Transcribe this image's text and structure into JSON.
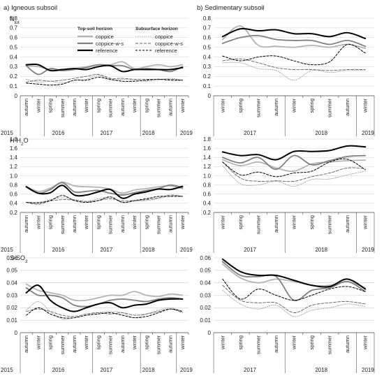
{
  "panels": {
    "igneous_title": "a) Igneous subsoil",
    "sedimentary_title": "b) Sedimentary subsoil"
  },
  "legend": {
    "topsoil_title": "Top-soil horizon",
    "subsurface_title": "Subsurface horizon",
    "entries": [
      "coppice",
      "coppice-w-s",
      "reference"
    ]
  },
  "colors": {
    "coppice": "#b4b4b4",
    "coppice_w_s": "#808080",
    "reference": "#000000",
    "sub_coppice": "#a8a8a8",
    "sub_coppice_w_s": "#606060",
    "sub_reference": "#000000"
  },
  "x_axes": {
    "igneous": {
      "seasons": [
        "autumn",
        "winter",
        "spring",
        "summer",
        "autumn",
        "winter",
        "spring",
        "summer",
        "autumn",
        "winter",
        "spring",
        "summer",
        "autumn",
        "winter"
      ],
      "years": [
        "2015",
        "2016",
        "2017",
        "2018",
        "2019"
      ]
    },
    "sedimentary": {
      "seasons": [
        "winter",
        "spring",
        "summer",
        "autumn",
        "winter",
        "spring",
        "summer",
        "autumn",
        "winter"
      ],
      "years": [
        "2017",
        "2018",
        "2019"
      ]
    }
  },
  "chart_data": [
    {
      "type": "line",
      "panel": "igneous",
      "ylabel": "N_tot",
      "ylim": [
        0,
        0.8
      ],
      "yticks": [
        0,
        0.1,
        0.2,
        0.3,
        0.4,
        0.5,
        0.6,
        0.7,
        0.8
      ],
      "series": [
        {
          "name": "coppice",
          "horizon": "top-soil",
          "values": [
            0.31,
            0.3,
            0.27,
            0.26,
            0.28,
            0.3,
            0.32,
            0.32,
            0.35,
            0.28,
            0.3,
            0.32,
            0.3,
            0.32
          ]
        },
        {
          "name": "coppice-w-s",
          "horizon": "top-soil",
          "values": [
            0.31,
            0.22,
            0.28,
            0.26,
            0.27,
            0.29,
            0.32,
            0.31,
            0.31,
            0.27,
            0.28,
            0.27,
            0.25,
            0.3
          ]
        },
        {
          "name": "reference",
          "horizon": "top-soil",
          "values": [
            0.32,
            0.32,
            0.26,
            0.27,
            0.28,
            0.27,
            0.3,
            0.31,
            0.25,
            0.27,
            0.27,
            0.27,
            0.27,
            0.29
          ]
        },
        {
          "name": "coppice",
          "horizon": "subsurface",
          "values": [
            0.17,
            0.14,
            0.15,
            0.13,
            0.16,
            0.17,
            0.21,
            0.16,
            0.17,
            0.16,
            0.15,
            0.16,
            0.18,
            0.16
          ]
        },
        {
          "name": "coppice-w-s",
          "horizon": "subsurface",
          "values": [
            0.14,
            0.16,
            0.15,
            0.16,
            0.18,
            0.2,
            0.22,
            0.18,
            0.18,
            0.17,
            0.17,
            0.17,
            0.17,
            0.16
          ]
        },
        {
          "name": "reference",
          "horizon": "subsurface",
          "values": [
            0.13,
            0.12,
            0.11,
            0.12,
            0.16,
            0.16,
            0.19,
            0.17,
            0.15,
            0.15,
            0.16,
            0.17,
            0.16,
            0.16
          ]
        }
      ]
    },
    {
      "type": "line",
      "panel": "sedimentary",
      "ylim": [
        0,
        0.8
      ],
      "yticks": [
        0,
        0.1,
        0.2,
        0.3,
        0.4,
        0.5,
        0.6,
        0.7,
        0.8
      ],
      "series": [
        {
          "name": "coppice",
          "horizon": "top-soil",
          "values": [
            0.58,
            0.72,
            0.52,
            0.51,
            0.5,
            0.52,
            0.5,
            0.53,
            0.49
          ]
        },
        {
          "name": "coppice-w-s",
          "horizon": "top-soil",
          "values": [
            0.54,
            0.6,
            0.62,
            0.58,
            0.57,
            0.57,
            0.53,
            0.57,
            0.51
          ]
        },
        {
          "name": "reference",
          "horizon": "top-soil",
          "values": [
            0.61,
            0.69,
            0.67,
            0.68,
            0.64,
            0.64,
            0.61,
            0.65,
            0.59
          ]
        },
        {
          "name": "coppice",
          "horizon": "subsurface",
          "values": [
            0.34,
            0.34,
            0.28,
            0.26,
            0.16,
            0.26,
            0.24,
            0.26,
            0.26
          ]
        },
        {
          "name": "coppice-w-s",
          "horizon": "subsurface",
          "values": [
            0.36,
            0.38,
            0.34,
            0.29,
            0.27,
            0.27,
            0.26,
            0.27,
            0.27
          ]
        },
        {
          "name": "reference",
          "horizon": "subsurface",
          "values": [
            0.41,
            0.36,
            0.4,
            0.41,
            0.36,
            0.32,
            0.35,
            0.53,
            0.44
          ]
        }
      ]
    },
    {
      "type": "line",
      "panel": "igneous",
      "ylabel": "H-H2O",
      "ylim": [
        0.2,
        1.8
      ],
      "yticks": [
        0.2,
        0.4,
        0.6,
        0.8,
        1.0,
        1.2,
        1.4,
        1.6,
        1.8
      ],
      "series": [
        {
          "name": "coppice",
          "horizon": "top-soil",
          "values": [
            0.77,
            0.66,
            0.73,
            0.86,
            0.78,
            0.76,
            0.75,
            0.71,
            0.62,
            0.69,
            0.72,
            0.76,
            0.78,
            0.72
          ]
        },
        {
          "name": "coppice-w-s",
          "horizon": "top-soil",
          "values": [
            0.76,
            0.62,
            0.7,
            0.85,
            0.65,
            0.66,
            0.68,
            0.62,
            0.58,
            0.63,
            0.68,
            0.72,
            0.8,
            0.74
          ]
        },
        {
          "name": "reference",
          "horizon": "top-soil",
          "values": [
            0.76,
            0.62,
            0.63,
            0.79,
            0.58,
            0.58,
            0.65,
            0.7,
            0.51,
            0.6,
            0.65,
            0.71,
            0.7,
            0.77
          ]
        },
        {
          "name": "coppice",
          "horizon": "subsurface",
          "values": [
            0.42,
            0.42,
            0.48,
            0.52,
            0.48,
            0.44,
            0.5,
            0.52,
            0.42,
            0.44,
            0.46,
            0.5,
            0.56,
            0.56
          ]
        },
        {
          "name": "coppice-w-s",
          "horizon": "subsurface",
          "values": [
            0.42,
            0.38,
            0.45,
            0.48,
            0.47,
            0.44,
            0.46,
            0.5,
            0.45,
            0.46,
            0.48,
            0.52,
            0.58,
            0.55
          ]
        },
        {
          "name": "reference",
          "horizon": "subsurface",
          "values": [
            0.42,
            0.41,
            0.46,
            0.57,
            0.46,
            0.42,
            0.46,
            0.54,
            0.42,
            0.46,
            0.5,
            0.55,
            0.55,
            0.55
          ]
        }
      ]
    },
    {
      "type": "line",
      "panel": "sedimentary",
      "ylim": [
        0.2,
        1.8
      ],
      "yticks": [
        0.2,
        0.4,
        0.6,
        0.8,
        1.0,
        1.2,
        1.4,
        1.6,
        1.8
      ],
      "series": [
        {
          "name": "coppice",
          "horizon": "top-soil",
          "values": [
            1.35,
            1.22,
            1.3,
            1.17,
            1.1,
            1.26,
            1.3,
            1.33,
            1.34
          ]
        },
        {
          "name": "coppice-w-s",
          "horizon": "top-soil",
          "values": [
            1.4,
            1.28,
            1.4,
            1.14,
            1.44,
            1.24,
            1.33,
            1.42,
            1.44
          ]
        },
        {
          "name": "reference",
          "horizon": "top-soil",
          "values": [
            1.52,
            1.44,
            1.46,
            1.35,
            1.53,
            1.53,
            1.55,
            1.65,
            1.63
          ]
        },
        {
          "name": "coppice",
          "horizon": "subsurface",
          "values": [
            1.22,
            0.83,
            0.8,
            0.88,
            0.77,
            0.92,
            0.93,
            1.02,
            1.1
          ]
        },
        {
          "name": "coppice-w-s",
          "horizon": "subsurface",
          "values": [
            1.3,
            0.95,
            0.88,
            0.89,
            0.88,
            0.98,
            1.06,
            1.17,
            1.16
          ]
        },
        {
          "name": "reference",
          "horizon": "subsurface",
          "values": [
            1.3,
            1.02,
            1.08,
            0.98,
            1.06,
            1.1,
            1.3,
            1.36,
            1.13
          ]
        }
      ]
    },
    {
      "type": "line",
      "panel": "igneous",
      "ylabel": "S-SO2",
      "ylim": [
        0,
        0.06
      ],
      "yticks": [
        0,
        0.01,
        0.02,
        0.03,
        0.04,
        0.05,
        0.06
      ],
      "series": [
        {
          "name": "coppice",
          "horizon": "top-soil",
          "values": [
            0.039,
            0.034,
            0.032,
            0.03,
            0.026,
            0.026,
            0.028,
            0.03,
            0.03,
            0.033,
            0.03,
            0.029,
            0.031,
            0.03
          ]
        },
        {
          "name": "coppice-w-s",
          "horizon": "top-soil",
          "values": [
            0.036,
            0.03,
            0.03,
            0.028,
            0.022,
            0.021,
            0.023,
            0.026,
            0.027,
            0.026,
            0.025,
            0.027,
            0.028,
            0.027
          ]
        },
        {
          "name": "reference",
          "horizon": "top-soil",
          "values": [
            0.032,
            0.038,
            0.026,
            0.02,
            0.017,
            0.02,
            0.023,
            0.024,
            0.02,
            0.022,
            0.023,
            0.026,
            0.027,
            0.027
          ]
        },
        {
          "name": "coppice",
          "horizon": "subsurface",
          "values": [
            0.018,
            0.025,
            0.017,
            0.011,
            0.012,
            0.014,
            0.016,
            0.017,
            0.016,
            0.012,
            0.015,
            0.018,
            0.02,
            0.017
          ]
        },
        {
          "name": "coppice-w-s",
          "horizon": "subsurface",
          "values": [
            0.017,
            0.019,
            0.017,
            0.014,
            0.013,
            0.015,
            0.016,
            0.015,
            0.016,
            0.014,
            0.015,
            0.017,
            0.019,
            0.016
          ]
        },
        {
          "name": "reference",
          "horizon": "subsurface",
          "values": [
            0.014,
            0.02,
            0.015,
            0.012,
            0.012,
            0.014,
            0.015,
            0.016,
            0.014,
            0.012,
            0.013,
            0.016,
            0.019,
            0.017
          ]
        }
      ]
    },
    {
      "type": "line",
      "panel": "sedimentary",
      "ylim": [
        0,
        0.06
      ],
      "yticks": [
        0,
        0.01,
        0.02,
        0.03,
        0.04,
        0.05,
        0.06
      ],
      "series": [
        {
          "name": "coppice",
          "horizon": "top-soil",
          "values": [
            0.055,
            0.044,
            0.04,
            0.043,
            0.041,
            0.038,
            0.038,
            0.041,
            0.036
          ]
        },
        {
          "name": "coppice-w-s",
          "horizon": "top-soil",
          "values": [
            0.057,
            0.046,
            0.045,
            0.045,
            0.026,
            0.034,
            0.036,
            0.041,
            0.033
          ]
        },
        {
          "name": "reference",
          "horizon": "top-soil",
          "values": [
            0.059,
            0.049,
            0.046,
            0.046,
            0.042,
            0.038,
            0.037,
            0.043,
            0.035
          ]
        },
        {
          "name": "coppice",
          "horizon": "subsurface",
          "values": [
            0.034,
            0.023,
            0.019,
            0.022,
            0.013,
            0.018,
            0.02,
            0.023,
            0.021
          ]
        },
        {
          "name": "coppice-w-s",
          "horizon": "subsurface",
          "values": [
            0.038,
            0.026,
            0.024,
            0.024,
            0.016,
            0.022,
            0.024,
            0.025,
            0.023
          ]
        },
        {
          "name": "reference",
          "horizon": "subsurface",
          "values": [
            0.043,
            0.027,
            0.035,
            0.03,
            0.026,
            0.03,
            0.035,
            0.037,
            0.033
          ]
        }
      ]
    }
  ]
}
